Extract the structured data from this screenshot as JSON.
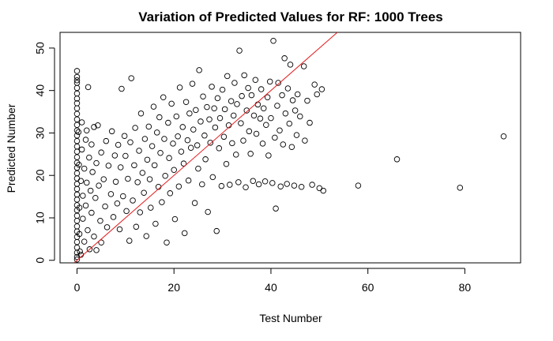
{
  "chart_data": {
    "type": "scatter",
    "title": "Variation of Predicted Values for RF: 1000 Trees",
    "xlabel": "Test Number",
    "ylabel": "Predicted Number",
    "xlim": [
      -3.5,
      91.5
    ],
    "ylim": [
      -0.6,
      53.7
    ],
    "x_ticks": [
      0,
      20,
      40,
      60,
      80
    ],
    "y_ticks": [
      0,
      10,
      20,
      30,
      40,
      50
    ],
    "grid": false,
    "reference_line": {
      "color": "#e41a1c",
      "points": [
        [
          -0.5,
          -0.5
        ],
        [
          54,
          54
        ]
      ]
    },
    "marker": {
      "shape": "open-circle",
      "color": "#000000"
    },
    "series": [
      {
        "points": [
          [
            0,
            44.6
          ],
          [
            0,
            43.2
          ],
          [
            0,
            42.4
          ],
          [
            0,
            41.8
          ],
          [
            0,
            40.6
          ],
          [
            0,
            39.3
          ],
          [
            0,
            38.1
          ],
          [
            0,
            37.0
          ],
          [
            0,
            35.8
          ],
          [
            0,
            34.5
          ],
          [
            0,
            33.2
          ],
          [
            0,
            31.9
          ],
          [
            0,
            30.6
          ],
          [
            0,
            29.4
          ],
          [
            0,
            28.1
          ],
          [
            0,
            26.8
          ],
          [
            0,
            25.6
          ],
          [
            0,
            24.3
          ],
          [
            0,
            23.0
          ],
          [
            0,
            21.8
          ],
          [
            0,
            20.5
          ],
          [
            0,
            19.3
          ],
          [
            0,
            18.0
          ],
          [
            0,
            16.8
          ],
          [
            0,
            15.5
          ],
          [
            0,
            14.3
          ],
          [
            0,
            13.0
          ],
          [
            0,
            11.8
          ],
          [
            0,
            10.5
          ],
          [
            0,
            9.3
          ],
          [
            0,
            8.0
          ],
          [
            0,
            6.8
          ],
          [
            0,
            5.5
          ],
          [
            0,
            4.3
          ],
          [
            0,
            3.0
          ],
          [
            0,
            1.8
          ],
          [
            0,
            0.8
          ],
          [
            0,
            0.2
          ],
          [
            0.3,
            30.2
          ],
          [
            0.4,
            22.5
          ],
          [
            0.5,
            12.4
          ],
          [
            0.5,
            6.2
          ],
          [
            0.6,
            2.1
          ],
          [
            0.8,
            18.7
          ],
          [
            0.8,
            1.3
          ],
          [
            1.0,
            32.5
          ],
          [
            1.0,
            26.1
          ],
          [
            1.2,
            15.2
          ],
          [
            1.2,
            9.8
          ],
          [
            1.5,
            21.6
          ],
          [
            1.5,
            4.4
          ],
          [
            1.8,
            28.4
          ],
          [
            1.8,
            12.9
          ],
          [
            2.0,
            30.6
          ],
          [
            2.0,
            18.3
          ],
          [
            2.2,
            7.1
          ],
          [
            2.3,
            40.8
          ],
          [
            2.5,
            24.2
          ],
          [
            2.6,
            2.6
          ],
          [
            2.8,
            16.4
          ],
          [
            3.0,
            27.3
          ],
          [
            3.0,
            11.2
          ],
          [
            3.2,
            20.8
          ],
          [
            3.5,
            31.4
          ],
          [
            3.5,
            5.6
          ],
          [
            3.8,
            14.7
          ],
          [
            4.0,
            22.9
          ],
          [
            4.0,
            2.4
          ],
          [
            4.3,
            31.8
          ],
          [
            4.5,
            17.6
          ],
          [
            4.8,
            9.3
          ],
          [
            5.0,
            25.4
          ],
          [
            5.0,
            4.2
          ],
          [
            5.5,
            19.1
          ],
          [
            5.8,
            12.7
          ],
          [
            6.0,
            28.1
          ],
          [
            6.2,
            7.8
          ],
          [
            6.5,
            22.3
          ],
          [
            7.0,
            15.6
          ],
          [
            7.2,
            30.4
          ],
          [
            7.5,
            10.2
          ],
          [
            7.8,
            24.7
          ],
          [
            8.0,
            18.5
          ],
          [
            8.3,
            13.4
          ],
          [
            8.5,
            27.2
          ],
          [
            8.8,
            7.3
          ],
          [
            9.0,
            21.9
          ],
          [
            9.2,
            40.4
          ],
          [
            9.5,
            15.1
          ],
          [
            9.8,
            29.3
          ],
          [
            10.0,
            24.6
          ],
          [
            10.2,
            11.6
          ],
          [
            10.5,
            19.2
          ],
          [
            10.8,
            4.6
          ],
          [
            11.0,
            27.8
          ],
          [
            11.2,
            42.9
          ],
          [
            11.5,
            14.1
          ],
          [
            11.8,
            22.4
          ],
          [
            12.0,
            31.2
          ],
          [
            12.2,
            7.9
          ],
          [
            12.5,
            18.4
          ],
          [
            12.8,
            25.8
          ],
          [
            13.0,
            11.3
          ],
          [
            13.2,
            34.6
          ],
          [
            13.5,
            20.6
          ],
          [
            13.8,
            15.9
          ],
          [
            14.0,
            28.6
          ],
          [
            14.3,
            5.7
          ],
          [
            14.5,
            23.7
          ],
          [
            14.8,
            31.5
          ],
          [
            15.0,
            19.1
          ],
          [
            15.2,
            12.4
          ],
          [
            15.5,
            26.9
          ],
          [
            15.8,
            36.2
          ],
          [
            16.0,
            22.4
          ],
          [
            16.2,
            8.6
          ],
          [
            16.5,
            30.1
          ],
          [
            16.8,
            17.3
          ],
          [
            17.0,
            33.7
          ],
          [
            17.2,
            25.3
          ],
          [
            17.5,
            13.7
          ],
          [
            17.8,
            38.4
          ],
          [
            18.0,
            28.6
          ],
          [
            18.2,
            19.9
          ],
          [
            18.5,
            4.2
          ],
          [
            18.8,
            32.4
          ],
          [
            19.0,
            24.1
          ],
          [
            19.2,
            15.8
          ],
          [
            19.5,
            36.9
          ],
          [
            19.8,
            27.5
          ],
          [
            20.0,
            21.3
          ],
          [
            20.2,
            9.7
          ],
          [
            20.5,
            33.9
          ],
          [
            20.8,
            29.2
          ],
          [
            21.0,
            17.4
          ],
          [
            21.2,
            40.7
          ],
          [
            21.5,
            25.6
          ],
          [
            21.8,
            31.4
          ],
          [
            22.0,
            22.8
          ],
          [
            22.2,
            6.4
          ],
          [
            22.5,
            37.3
          ],
          [
            22.8,
            28.3
          ],
          [
            23.0,
            18.8
          ],
          [
            23.2,
            34.6
          ],
          [
            23.5,
            26.5
          ],
          [
            23.8,
            41.6
          ],
          [
            24.0,
            30.8
          ],
          [
            24.3,
            13.5
          ],
          [
            24.5,
            35.4
          ],
          [
            24.8,
            27.1
          ],
          [
            25.0,
            21.6
          ],
          [
            25.2,
            44.8
          ],
          [
            25.5,
            32.7
          ],
          [
            25.8,
            17.9
          ],
          [
            26.0,
            38.6
          ],
          [
            26.3,
            29.4
          ],
          [
            26.5,
            23.8
          ],
          [
            26.8,
            36.1
          ],
          [
            27.0,
            11.4
          ],
          [
            27.3,
            33.2
          ],
          [
            27.5,
            27.7
          ],
          [
            27.8,
            40.9
          ],
          [
            28.0,
            19.6
          ],
          [
            28.3,
            35.8
          ],
          [
            28.5,
            31.3
          ],
          [
            28.8,
            6.9
          ],
          [
            29.0,
            38.2
          ],
          [
            29.3,
            26.4
          ],
          [
            29.5,
            33.5
          ],
          [
            29.8,
            17.5
          ],
          [
            30.0,
            40.2
          ],
          [
            30.3,
            29.1
          ],
          [
            30.5,
            35.6
          ],
          [
            30.8,
            22.7
          ],
          [
            31.0,
            43.4
          ],
          [
            31.3,
            31.8
          ],
          [
            31.5,
            17.8
          ],
          [
            31.8,
            37.5
          ],
          [
            32.0,
            27.6
          ],
          [
            32.3,
            34.1
          ],
          [
            32.5,
            41.8
          ],
          [
            32.8,
            24.9
          ],
          [
            33.0,
            36.8
          ],
          [
            33.3,
            18.4
          ],
          [
            33.5,
            49.4
          ],
          [
            33.8,
            32.3
          ],
          [
            34.0,
            38.7
          ],
          [
            34.3,
            28.2
          ],
          [
            34.5,
            43.6
          ],
          [
            34.8,
            17.2
          ],
          [
            35.0,
            35.3
          ],
          [
            35.3,
            40.6
          ],
          [
            35.5,
            30.4
          ],
          [
            35.8,
            25.1
          ],
          [
            36.0,
            38.9
          ],
          [
            36.3,
            18.7
          ],
          [
            36.5,
            34.1
          ],
          [
            36.8,
            42.5
          ],
          [
            37.0,
            29.8
          ],
          [
            37.3,
            36.7
          ],
          [
            37.5,
            17.9
          ],
          [
            37.8,
            33.4
          ],
          [
            38.0,
            40.3
          ],
          [
            38.3,
            27.5
          ],
          [
            38.5,
            35.8
          ],
          [
            38.8,
            18.6
          ],
          [
            39.0,
            31.9
          ],
          [
            39.3,
            38.4
          ],
          [
            39.5,
            24.7
          ],
          [
            39.8,
            42.1
          ],
          [
            40.0,
            33.5
          ],
          [
            40.3,
            18.2
          ],
          [
            40.5,
            51.7
          ],
          [
            40.8,
            28.9
          ],
          [
            41.0,
            12.2
          ],
          [
            41.3,
            36.4
          ],
          [
            41.5,
            41.8
          ],
          [
            41.8,
            30.6
          ],
          [
            42.0,
            17.4
          ],
          [
            42.3,
            38.9
          ],
          [
            42.5,
            27.3
          ],
          [
            42.8,
            47.6
          ],
          [
            43.0,
            34.6
          ],
          [
            43.3,
            18.0
          ],
          [
            43.5,
            40.5
          ],
          [
            43.8,
            32.2
          ],
          [
            44.0,
            46.1
          ],
          [
            44.3,
            26.7
          ],
          [
            44.5,
            37.7
          ],
          [
            44.8,
            17.6
          ],
          [
            45.0,
            35.3
          ],
          [
            45.3,
            29.5
          ],
          [
            45.5,
            39.1
          ],
          [
            46.0,
            33.9
          ],
          [
            46.3,
            17.3
          ],
          [
            46.8,
            45.7
          ],
          [
            47.0,
            28.2
          ],
          [
            47.5,
            37.6
          ],
          [
            48.0,
            32.4
          ],
          [
            48.5,
            17.8
          ],
          [
            49.0,
            41.4
          ],
          [
            49.5,
            39.1
          ],
          [
            50.0,
            17.0
          ],
          [
            50.5,
            40.3
          ],
          [
            50.8,
            16.4
          ],
          [
            58.0,
            17.6
          ],
          [
            66.0,
            23.8
          ],
          [
            79.0,
            17.1
          ],
          [
            88.0,
            29.2
          ]
        ]
      }
    ]
  }
}
